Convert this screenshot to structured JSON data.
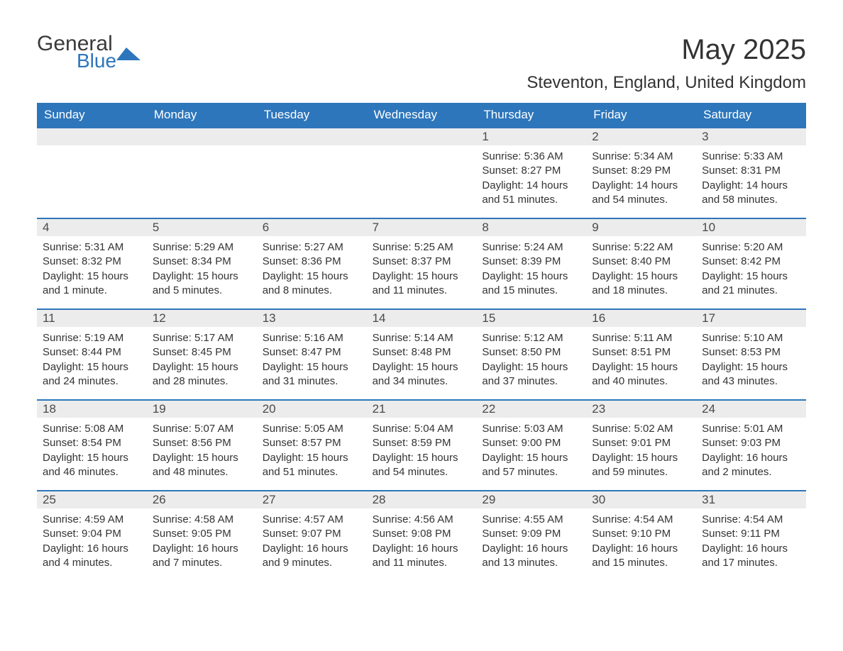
{
  "logo": {
    "general": "General",
    "blue": "Blue"
  },
  "title": "May 2025",
  "location": "Steventon, England, United Kingdom",
  "colors": {
    "header_bg": "#2d76bb",
    "header_text": "#ffffff",
    "daynum_bg": "#ececec",
    "daynum_border": "#2d76bb",
    "body_text": "#333333",
    "page_bg": "#ffffff",
    "logo_blue": "#2d76bb",
    "logo_gray": "#3a3a3a"
  },
  "layout": {
    "columns": 7,
    "first_weekday": "Sunday"
  },
  "weekdays": [
    "Sunday",
    "Monday",
    "Tuesday",
    "Wednesday",
    "Thursday",
    "Friday",
    "Saturday"
  ],
  "weeks": [
    [
      {
        "empty": true
      },
      {
        "empty": true
      },
      {
        "empty": true
      },
      {
        "empty": true
      },
      {
        "day": "1",
        "sunrise": "Sunrise: 5:36 AM",
        "sunset": "Sunset: 8:27 PM",
        "daylight": "Daylight: 14 hours and 51 minutes."
      },
      {
        "day": "2",
        "sunrise": "Sunrise: 5:34 AM",
        "sunset": "Sunset: 8:29 PM",
        "daylight": "Daylight: 14 hours and 54 minutes."
      },
      {
        "day": "3",
        "sunrise": "Sunrise: 5:33 AM",
        "sunset": "Sunset: 8:31 PM",
        "daylight": "Daylight: 14 hours and 58 minutes."
      }
    ],
    [
      {
        "day": "4",
        "sunrise": "Sunrise: 5:31 AM",
        "sunset": "Sunset: 8:32 PM",
        "daylight": "Daylight: 15 hours and 1 minute."
      },
      {
        "day": "5",
        "sunrise": "Sunrise: 5:29 AM",
        "sunset": "Sunset: 8:34 PM",
        "daylight": "Daylight: 15 hours and 5 minutes."
      },
      {
        "day": "6",
        "sunrise": "Sunrise: 5:27 AM",
        "sunset": "Sunset: 8:36 PM",
        "daylight": "Daylight: 15 hours and 8 minutes."
      },
      {
        "day": "7",
        "sunrise": "Sunrise: 5:25 AM",
        "sunset": "Sunset: 8:37 PM",
        "daylight": "Daylight: 15 hours and 11 minutes."
      },
      {
        "day": "8",
        "sunrise": "Sunrise: 5:24 AM",
        "sunset": "Sunset: 8:39 PM",
        "daylight": "Daylight: 15 hours and 15 minutes."
      },
      {
        "day": "9",
        "sunrise": "Sunrise: 5:22 AM",
        "sunset": "Sunset: 8:40 PM",
        "daylight": "Daylight: 15 hours and 18 minutes."
      },
      {
        "day": "10",
        "sunrise": "Sunrise: 5:20 AM",
        "sunset": "Sunset: 8:42 PM",
        "daylight": "Daylight: 15 hours and 21 minutes."
      }
    ],
    [
      {
        "day": "11",
        "sunrise": "Sunrise: 5:19 AM",
        "sunset": "Sunset: 8:44 PM",
        "daylight": "Daylight: 15 hours and 24 minutes."
      },
      {
        "day": "12",
        "sunrise": "Sunrise: 5:17 AM",
        "sunset": "Sunset: 8:45 PM",
        "daylight": "Daylight: 15 hours and 28 minutes."
      },
      {
        "day": "13",
        "sunrise": "Sunrise: 5:16 AM",
        "sunset": "Sunset: 8:47 PM",
        "daylight": "Daylight: 15 hours and 31 minutes."
      },
      {
        "day": "14",
        "sunrise": "Sunrise: 5:14 AM",
        "sunset": "Sunset: 8:48 PM",
        "daylight": "Daylight: 15 hours and 34 minutes."
      },
      {
        "day": "15",
        "sunrise": "Sunrise: 5:12 AM",
        "sunset": "Sunset: 8:50 PM",
        "daylight": "Daylight: 15 hours and 37 minutes."
      },
      {
        "day": "16",
        "sunrise": "Sunrise: 5:11 AM",
        "sunset": "Sunset: 8:51 PM",
        "daylight": "Daylight: 15 hours and 40 minutes."
      },
      {
        "day": "17",
        "sunrise": "Sunrise: 5:10 AM",
        "sunset": "Sunset: 8:53 PM",
        "daylight": "Daylight: 15 hours and 43 minutes."
      }
    ],
    [
      {
        "day": "18",
        "sunrise": "Sunrise: 5:08 AM",
        "sunset": "Sunset: 8:54 PM",
        "daylight": "Daylight: 15 hours and 46 minutes."
      },
      {
        "day": "19",
        "sunrise": "Sunrise: 5:07 AM",
        "sunset": "Sunset: 8:56 PM",
        "daylight": "Daylight: 15 hours and 48 minutes."
      },
      {
        "day": "20",
        "sunrise": "Sunrise: 5:05 AM",
        "sunset": "Sunset: 8:57 PM",
        "daylight": "Daylight: 15 hours and 51 minutes."
      },
      {
        "day": "21",
        "sunrise": "Sunrise: 5:04 AM",
        "sunset": "Sunset: 8:59 PM",
        "daylight": "Daylight: 15 hours and 54 minutes."
      },
      {
        "day": "22",
        "sunrise": "Sunrise: 5:03 AM",
        "sunset": "Sunset: 9:00 PM",
        "daylight": "Daylight: 15 hours and 57 minutes."
      },
      {
        "day": "23",
        "sunrise": "Sunrise: 5:02 AM",
        "sunset": "Sunset: 9:01 PM",
        "daylight": "Daylight: 15 hours and 59 minutes."
      },
      {
        "day": "24",
        "sunrise": "Sunrise: 5:01 AM",
        "sunset": "Sunset: 9:03 PM",
        "daylight": "Daylight: 16 hours and 2 minutes."
      }
    ],
    [
      {
        "day": "25",
        "sunrise": "Sunrise: 4:59 AM",
        "sunset": "Sunset: 9:04 PM",
        "daylight": "Daylight: 16 hours and 4 minutes."
      },
      {
        "day": "26",
        "sunrise": "Sunrise: 4:58 AM",
        "sunset": "Sunset: 9:05 PM",
        "daylight": "Daylight: 16 hours and 7 minutes."
      },
      {
        "day": "27",
        "sunrise": "Sunrise: 4:57 AM",
        "sunset": "Sunset: 9:07 PM",
        "daylight": "Daylight: 16 hours and 9 minutes."
      },
      {
        "day": "28",
        "sunrise": "Sunrise: 4:56 AM",
        "sunset": "Sunset: 9:08 PM",
        "daylight": "Daylight: 16 hours and 11 minutes."
      },
      {
        "day": "29",
        "sunrise": "Sunrise: 4:55 AM",
        "sunset": "Sunset: 9:09 PM",
        "daylight": "Daylight: 16 hours and 13 minutes."
      },
      {
        "day": "30",
        "sunrise": "Sunrise: 4:54 AM",
        "sunset": "Sunset: 9:10 PM",
        "daylight": "Daylight: 16 hours and 15 minutes."
      },
      {
        "day": "31",
        "sunrise": "Sunrise: 4:54 AM",
        "sunset": "Sunset: 9:11 PM",
        "daylight": "Daylight: 16 hours and 17 minutes."
      }
    ]
  ]
}
